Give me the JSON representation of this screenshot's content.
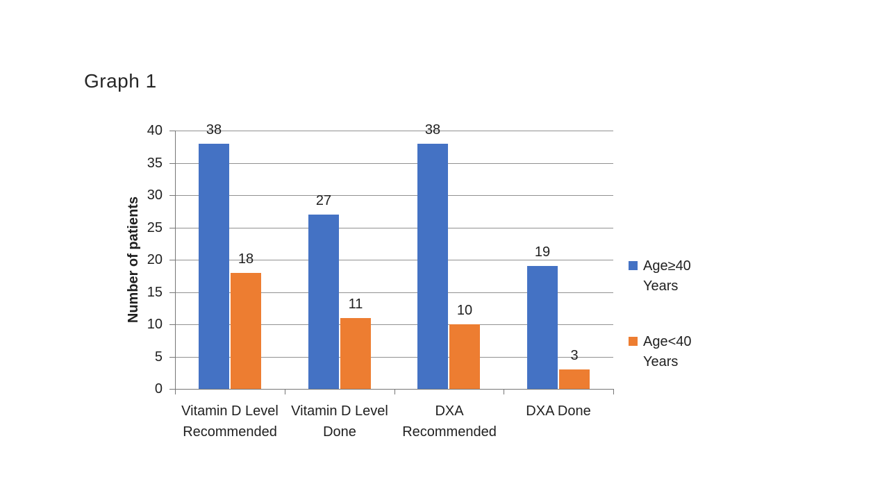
{
  "chart_data": {
    "type": "bar",
    "title": "Graph 1",
    "categories": [
      "Vitamin D Level Recommended",
      "Vitamin D Level Done",
      "DXA Recommended",
      "DXA Done"
    ],
    "series": [
      {
        "name": "Age≥40 Years",
        "values": [
          38,
          27,
          38,
          19
        ],
        "color": "#4472C4"
      },
      {
        "name": "Age<40 Years",
        "values": [
          18,
          11,
          10,
          3
        ],
        "color": "#ED7D31"
      }
    ],
    "xlabel": "",
    "ylabel": "Number of patients",
    "ylim": [
      0,
      40
    ],
    "ytick_step": 5,
    "yticks": [
      0,
      5,
      10,
      15,
      20,
      25,
      30,
      35,
      40
    ],
    "grid": true,
    "data_labels": true,
    "legend_position": "right"
  },
  "colors": {
    "background": "#ffffff",
    "gridline": "#919191",
    "axis": "#767676",
    "text": "#1f1f1f",
    "title_text": "#262626"
  }
}
